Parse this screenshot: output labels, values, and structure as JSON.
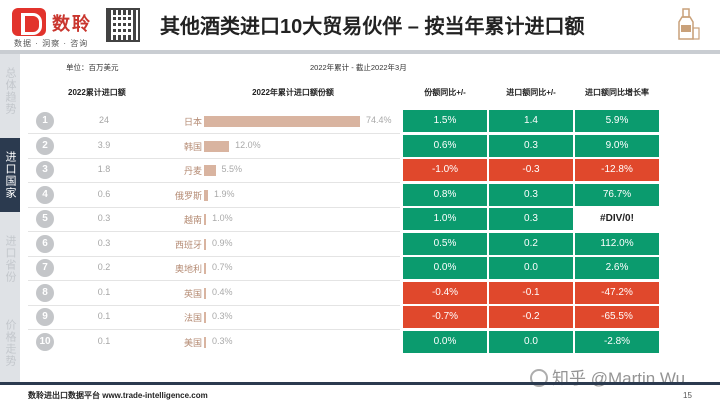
{
  "header": {
    "logo_text": "数聆",
    "logo_sub": "数据 · 洞察 · 咨询",
    "title": "其他酒类进口10大贸易伙伴 – 按当年累计进口额"
  },
  "sidebar": {
    "items": [
      {
        "label": "总体趋势",
        "active": false
      },
      {
        "label": "进口国家",
        "active": true
      },
      {
        "label": "进口省份",
        "active": false
      },
      {
        "label": "价格走势",
        "active": false
      }
    ]
  },
  "table": {
    "unit": "单位：百万美元",
    "caption": "2022年累计 - 截止2022年3月",
    "headers": {
      "value": "2022累计进口额",
      "share": "2022年累计进口额份额",
      "share_yoy": "份额同比+/-",
      "amount_yoy": "进口额同比+/-",
      "growth": "进口额同比增长率"
    },
    "rows": [
      {
        "rank": "1",
        "value": "24",
        "country": "日本",
        "share": 74.4,
        "share_label": "74.4%",
        "share_yoy": "1.5%",
        "share_yoy_color": "green",
        "amount_yoy": "1.4",
        "amount_yoy_color": "green",
        "growth": "5.9%",
        "growth_color": "green"
      },
      {
        "rank": "2",
        "value": "3.9",
        "country": "韩国",
        "share": 12.0,
        "share_label": "12.0%",
        "share_yoy": "0.6%",
        "share_yoy_color": "green",
        "amount_yoy": "0.3",
        "amount_yoy_color": "green",
        "growth": "9.0%",
        "growth_color": "green"
      },
      {
        "rank": "3",
        "value": "1.8",
        "country": "丹麦",
        "share": 5.5,
        "share_label": "5.5%",
        "share_yoy": "-1.0%",
        "share_yoy_color": "red",
        "amount_yoy": "-0.3",
        "amount_yoy_color": "red",
        "growth": "-12.8%",
        "growth_color": "red"
      },
      {
        "rank": "4",
        "value": "0.6",
        "country": "俄罗斯",
        "share": 1.9,
        "share_label": "1.9%",
        "share_yoy": "0.8%",
        "share_yoy_color": "green",
        "amount_yoy": "0.3",
        "amount_yoy_color": "green",
        "growth": "76.7%",
        "growth_color": "green"
      },
      {
        "rank": "5",
        "value": "0.3",
        "country": "越南",
        "share": 1.0,
        "share_label": "1.0%",
        "share_yoy": "1.0%",
        "share_yoy_color": "green",
        "amount_yoy": "0.3",
        "amount_yoy_color": "green",
        "growth": "#DIV/0!",
        "growth_color": "white"
      },
      {
        "rank": "6",
        "value": "0.3",
        "country": "西班牙",
        "share": 0.9,
        "share_label": "0.9%",
        "share_yoy": "0.5%",
        "share_yoy_color": "green",
        "amount_yoy": "0.2",
        "amount_yoy_color": "green",
        "growth": "112.0%",
        "growth_color": "green"
      },
      {
        "rank": "7",
        "value": "0.2",
        "country": "奥地利",
        "share": 0.7,
        "share_label": "0.7%",
        "share_yoy": "0.0%",
        "share_yoy_color": "green",
        "amount_yoy": "0.0",
        "amount_yoy_color": "green",
        "growth": "2.6%",
        "growth_color": "green"
      },
      {
        "rank": "8",
        "value": "0.1",
        "country": "英国",
        "share": 0.4,
        "share_label": "0.4%",
        "share_yoy": "-0.4%",
        "share_yoy_color": "red",
        "amount_yoy": "-0.1",
        "amount_yoy_color": "red",
        "growth": "-47.2%",
        "growth_color": "red"
      },
      {
        "rank": "9",
        "value": "0.1",
        "country": "法国",
        "share": 0.3,
        "share_label": "0.3%",
        "share_yoy": "-0.7%",
        "share_yoy_color": "red",
        "amount_yoy": "-0.2",
        "amount_yoy_color": "red",
        "growth": "-65.5%",
        "growth_color": "red"
      },
      {
        "rank": "10",
        "value": "0.1",
        "country": "美国",
        "share": 0.3,
        "share_label": "0.3%",
        "share_yoy": "0.0%",
        "share_yoy_color": "green",
        "amount_yoy": "0.0",
        "amount_yoy_color": "green",
        "growth": "-2.8%",
        "growth_color": "green"
      }
    ]
  },
  "footer": {
    "text": "数聆进出口数据平台 www.trade-intelligence.com",
    "page": "15"
  },
  "watermark": "知乎 @Martin Wu",
  "colors": {
    "green": "#0b9b6e",
    "red": "#e0482c",
    "navy": "#2b3a4f",
    "bar": "#d9b4a0"
  }
}
